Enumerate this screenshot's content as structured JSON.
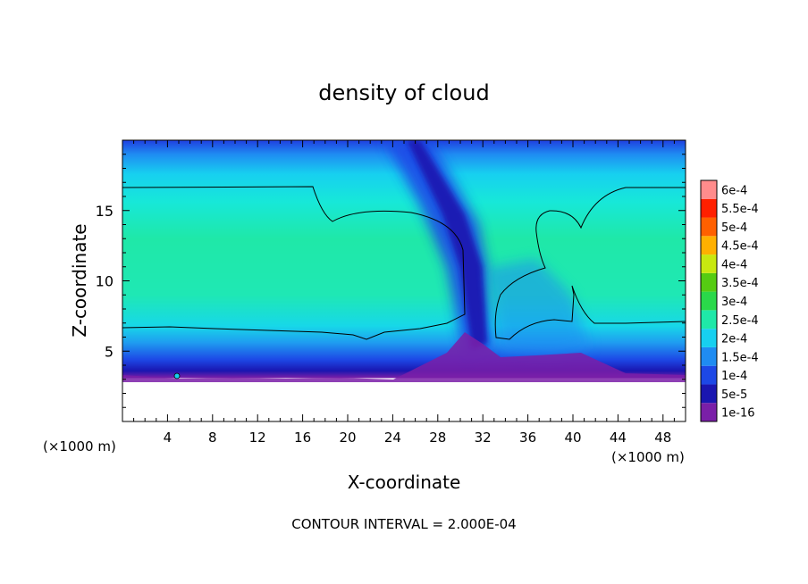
{
  "chart_data": {
    "type": "heatmap",
    "title": "density of cloud",
    "xlabel": "X-coordinate",
    "ylabel": "Z-coordinate",
    "x_unit_left": "(×1000 m)",
    "x_unit_right": "(×1000 m)",
    "xlim": [
      0,
      50
    ],
    "ylim": [
      0,
      20
    ],
    "x_ticks": [
      4,
      8,
      12,
      16,
      20,
      24,
      28,
      32,
      36,
      40,
      44,
      48
    ],
    "x_tick_labels": [
      "4",
      "8",
      "12",
      "16",
      "20",
      "24",
      "28",
      "32",
      "36",
      "40",
      "44",
      "48"
    ],
    "y_ticks": [
      5,
      10,
      15
    ],
    "y_tick_labels": [
      "5",
      "10",
      "15"
    ],
    "footer": "CONTOUR INTERVAL = 2.000E-04",
    "colorbar": {
      "levels": [
        0.0,
        5e-05,
        0.0001,
        0.00015,
        0.0002,
        0.00025,
        0.0003,
        0.00035,
        0.0004,
        0.00045,
        0.0005,
        0.00055,
        0.0006
      ],
      "labels": [
        "1e-16",
        "5e-5",
        "1e-4",
        "1.5e-4",
        "2e-4",
        "2.5e-4",
        "3e-4",
        "3.5e-4",
        "4e-4",
        "4.5e-4",
        "5e-4",
        "5.5e-4",
        "6e-4"
      ],
      "colors": [
        "#7a1fa8",
        "#1a16b0",
        "#1d48e6",
        "#1f8cf2",
        "#17d0f0",
        "#1fe8a8",
        "#2ad84a",
        "#55cc12",
        "#c8e810",
        "#ffb000",
        "#ff6000",
        "#ff2000",
        "#ff8c8c"
      ]
    },
    "contour_levels": [
      0.0002
    ],
    "field_description_values": {
      "cloud_base_z": 3,
      "cloud_top_z": 16.7,
      "core_value": 0.00024,
      "clear_gap_x": [
        29.5,
        32.5
      ]
    }
  }
}
